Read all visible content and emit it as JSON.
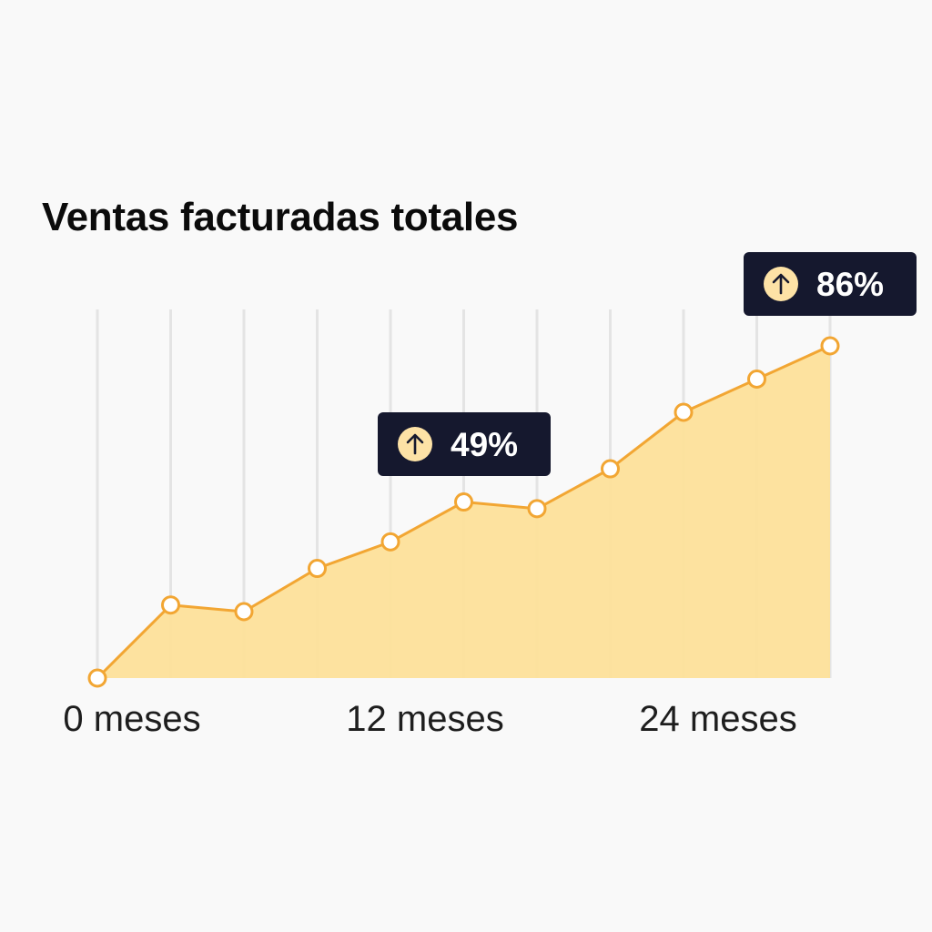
{
  "chart_data": {
    "type": "area",
    "title": "Ventas facturadas totales",
    "xlabel": "",
    "ylabel": "",
    "x_unit_label": "meses",
    "x": [
      0,
      3,
      6,
      9,
      12,
      15,
      18,
      21,
      24,
      27,
      30
    ],
    "values": [
      0,
      22,
      20,
      33,
      41,
      53,
      51,
      63,
      80,
      90,
      100
    ],
    "xlim": [
      0,
      30
    ],
    "ylim": [
      0,
      100
    ],
    "x_ticks": [
      {
        "x": 0,
        "label": "0 meses"
      },
      {
        "x": 12,
        "label": "12 meses"
      },
      {
        "x": 24,
        "label": "24 meses"
      }
    ],
    "grid": "vertical",
    "colors": {
      "line": "#f2a633",
      "fill": "#fde09a",
      "marker_fill": "#ffffff",
      "grid": "#e4e4e4",
      "badge": "#15182e",
      "badge_icon_bg": "#fde2a6"
    },
    "annotations": [
      {
        "label": "49%",
        "icon": "arrow-up-icon",
        "x": 12
      },
      {
        "label": "86%",
        "icon": "arrow-up-icon",
        "x": 30
      }
    ]
  }
}
